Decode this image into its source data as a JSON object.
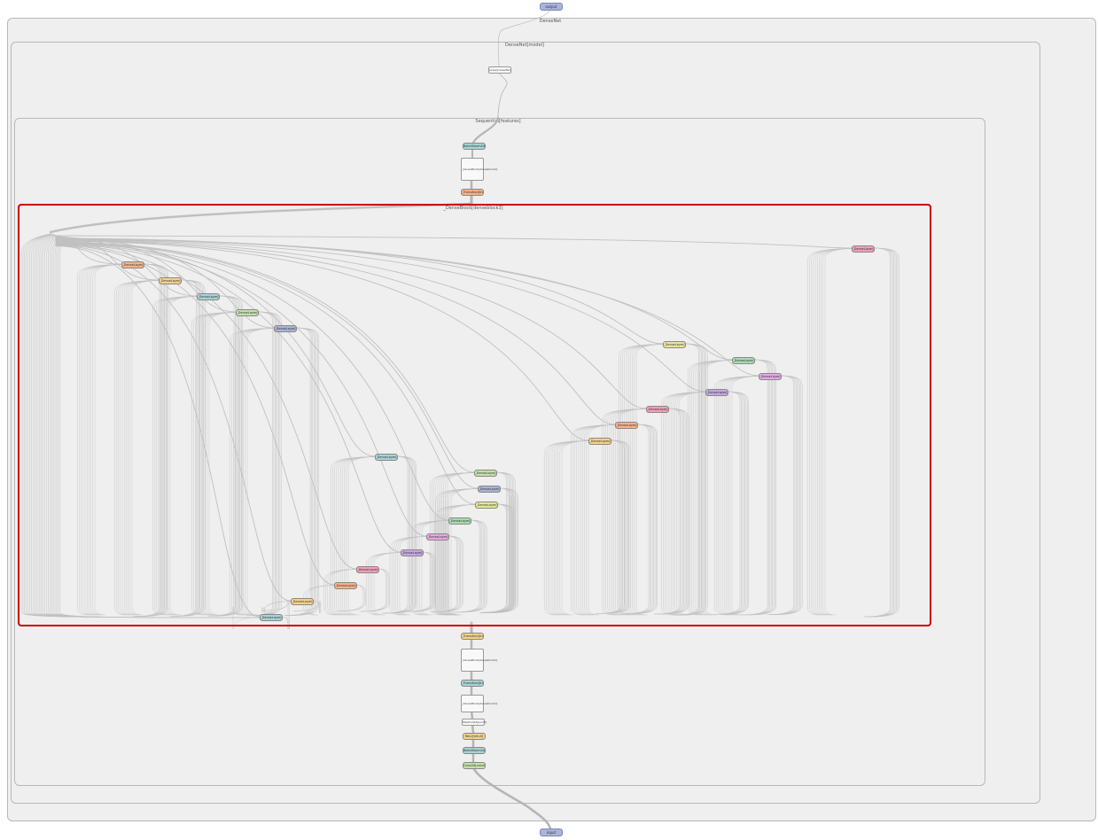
{
  "io": {
    "output_label": "output",
    "input_label": "input"
  },
  "frames": {
    "densenet": "DenseNet",
    "densenet_model": "DenseNet[model]",
    "sequential_features": "Sequential[features]",
    "denseblock3": "_DenseBlock[denseblock3]"
  },
  "top_nodes": {
    "linear": "Linear[classifier]",
    "norm5": "BatchNorm2d[norm5]",
    "denseblock4": "_DenseBlock[denseblock4]",
    "transition3": "_Transition[transition3]"
  },
  "bottom_nodes": {
    "transition2": "_Transition[transition2]",
    "denseblock2": "_DenseBlock[denseblock2]",
    "transition1": "_Transition[transition1]",
    "denseblock1": "_DenseBlock[denseblock1]",
    "pool0": "MaxPool2d[pool0]",
    "relu0": "ReLU[relu0]",
    "norm0": "BatchNorm2d[norm0]",
    "conv0": "Conv2d[conv0]"
  },
  "layer_label": "_DenseLayer[denselayer]",
  "colors": {
    "edge": "#b5b5b5",
    "selection": "#cc0000",
    "frame_bg": "#efefef",
    "palette": [
      "#f2a0b8",
      "#f6b38a",
      "#f4d28c",
      "#a8d4d4",
      "#c4e2a8",
      "#aab4d8",
      "#e6e89a",
      "#a8dcb4",
      "#e6a8e6",
      "#c4a8e2"
    ]
  }
}
